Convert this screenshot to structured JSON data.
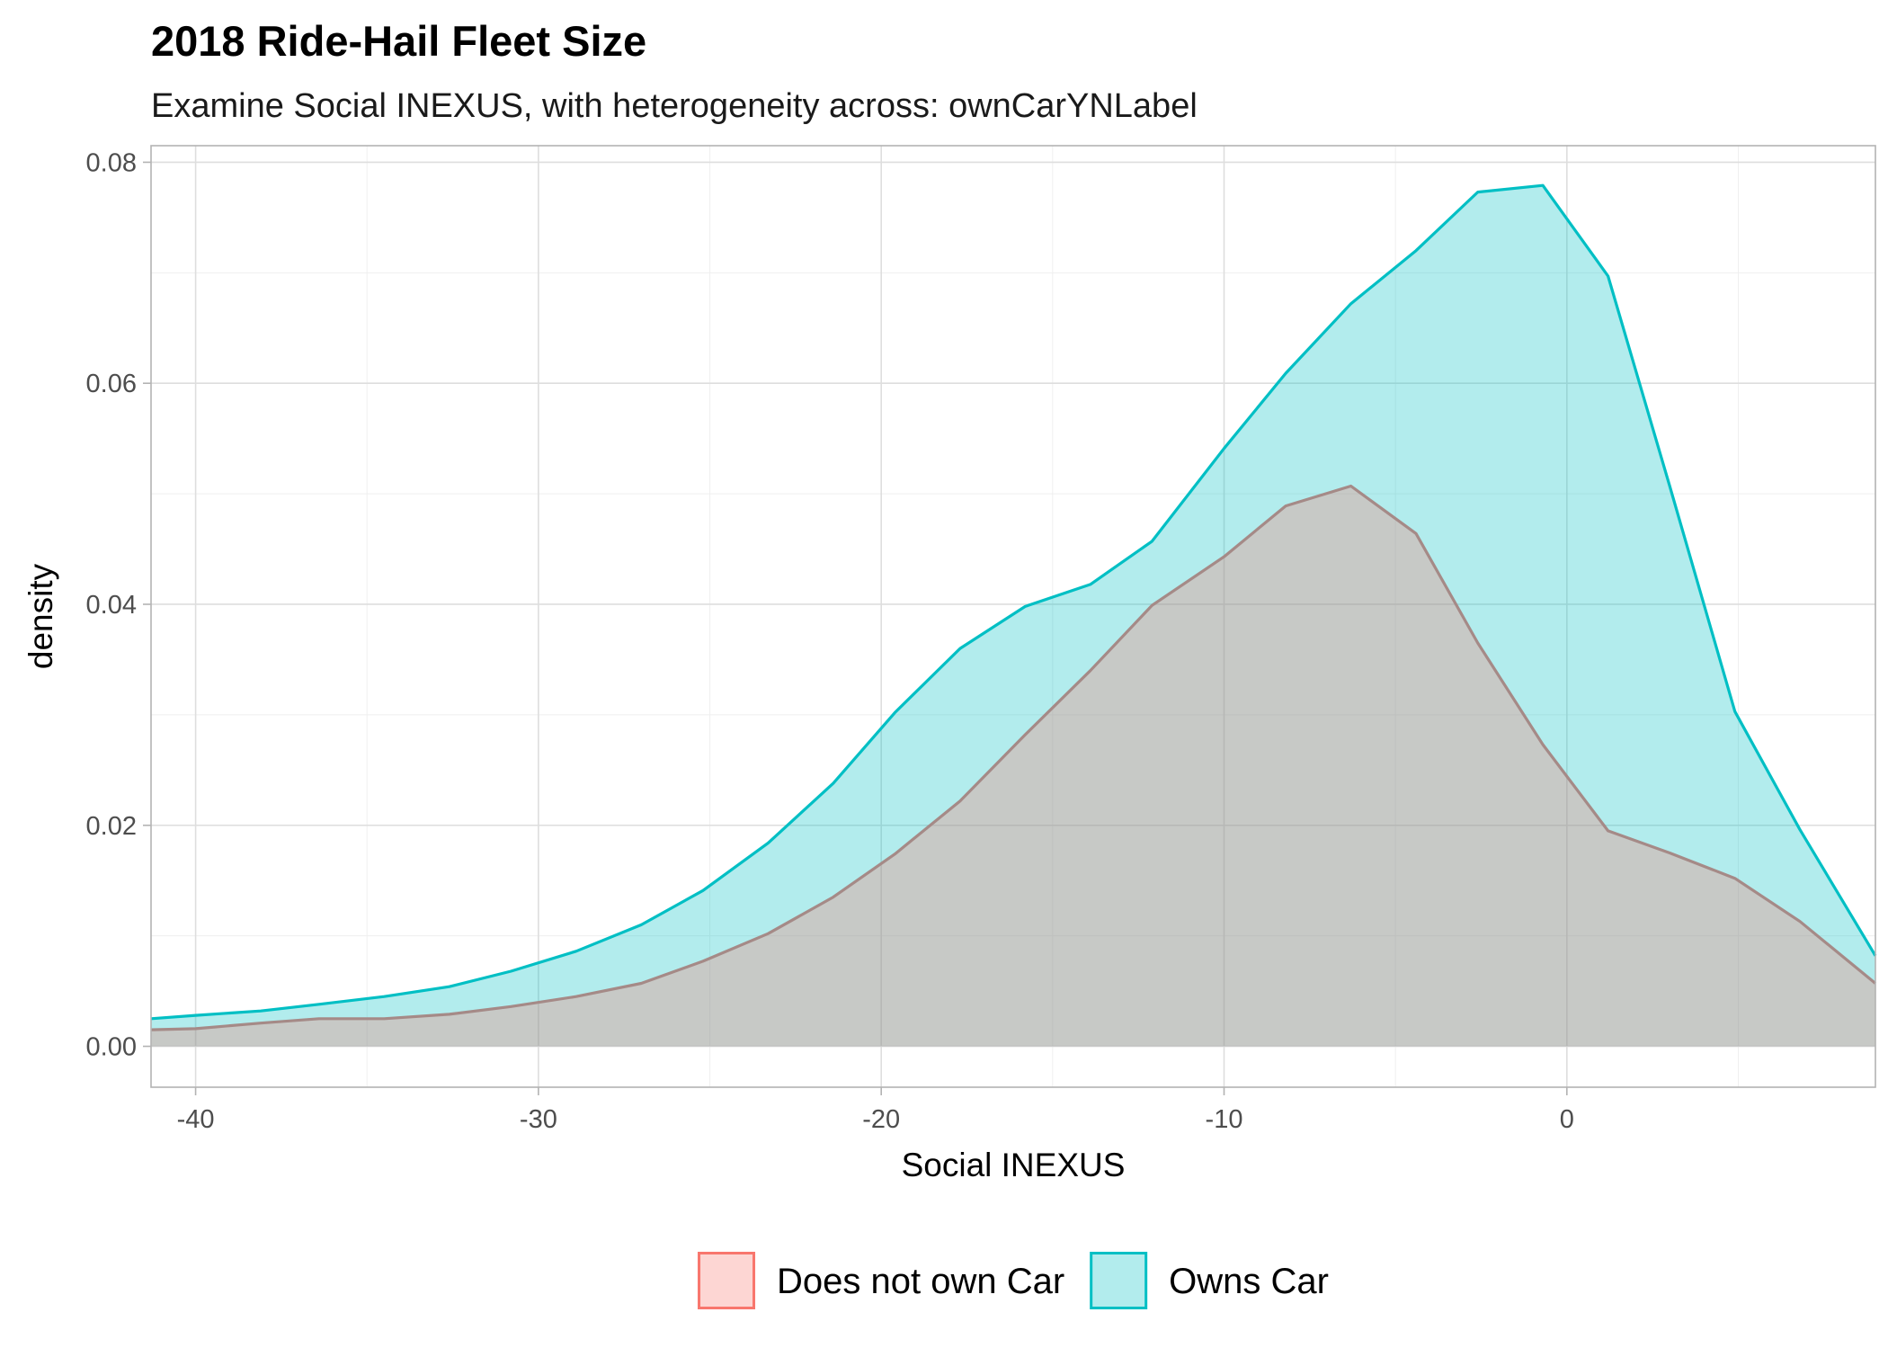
{
  "chart_data": {
    "type": "area",
    "title": "2018 Ride-Hail Fleet Size",
    "subtitle": "Examine Social INEXUS, with heterogeneity across: ownCarYNLabel",
    "xlabel": "Social INEXUS",
    "ylabel": "density",
    "xlim": [
      -41.3,
      9.0
    ],
    "ylim": [
      -0.0037,
      0.0815
    ],
    "x_ticks": [
      -40,
      -30,
      -20,
      -10,
      0
    ],
    "x_tick_labels": [
      "-40",
      "-30",
      "-20",
      "-10",
      "0"
    ],
    "y_ticks": [
      0.0,
      0.02,
      0.04,
      0.06,
      0.08
    ],
    "y_tick_labels": [
      "0.00",
      "0.02",
      "0.04",
      "0.06",
      "0.08"
    ],
    "grid": true,
    "legend": {
      "position": "bottom"
    },
    "series": [
      {
        "name": "Does not own Car",
        "line_color": "#F8766D",
        "fill_color": "#F8766D",
        "x": [
          -41.3,
          -40.0,
          -38.1,
          -36.4,
          -34.5,
          -32.6,
          -30.8,
          -28.9,
          -27.0,
          -25.2,
          -23.3,
          -21.4,
          -19.6,
          -17.7,
          -15.8,
          -13.9,
          -12.1,
          -10.0,
          -8.2,
          -6.3,
          -4.4,
          -2.6,
          -0.7,
          1.2,
          3.0,
          4.9,
          6.8,
          9.0
        ],
        "y": [
          0.0015,
          0.0016,
          0.0021,
          0.0025,
          0.0025,
          0.0029,
          0.0036,
          0.0045,
          0.0057,
          0.0077,
          0.0102,
          0.0135,
          0.0174,
          0.0222,
          0.0282,
          0.034,
          0.0399,
          0.0443,
          0.0489,
          0.0507,
          0.0464,
          0.0365,
          0.0273,
          0.0195,
          0.0175,
          0.0152,
          0.0113,
          0.0057
        ]
      },
      {
        "name": "Owns Car",
        "line_color": "#00BFC4",
        "fill_color": "#00BFC4",
        "x": [
          -41.3,
          -40.0,
          -38.1,
          -36.4,
          -34.5,
          -32.6,
          -30.8,
          -28.9,
          -27.0,
          -25.2,
          -23.3,
          -21.4,
          -19.6,
          -17.7,
          -15.8,
          -13.9,
          -12.1,
          -10.0,
          -8.2,
          -6.3,
          -4.4,
          -2.6,
          -0.7,
          1.2,
          3.0,
          4.9,
          6.8,
          9.0
        ],
        "y": [
          0.0025,
          0.0028,
          0.0032,
          0.0038,
          0.0045,
          0.0054,
          0.0068,
          0.0086,
          0.011,
          0.0141,
          0.0184,
          0.0238,
          0.0302,
          0.036,
          0.0398,
          0.0418,
          0.0457,
          0.0541,
          0.0609,
          0.0672,
          0.072,
          0.0773,
          0.0779,
          0.0697,
          0.0507,
          0.0303,
          0.0196,
          0.0082
        ]
      }
    ]
  }
}
